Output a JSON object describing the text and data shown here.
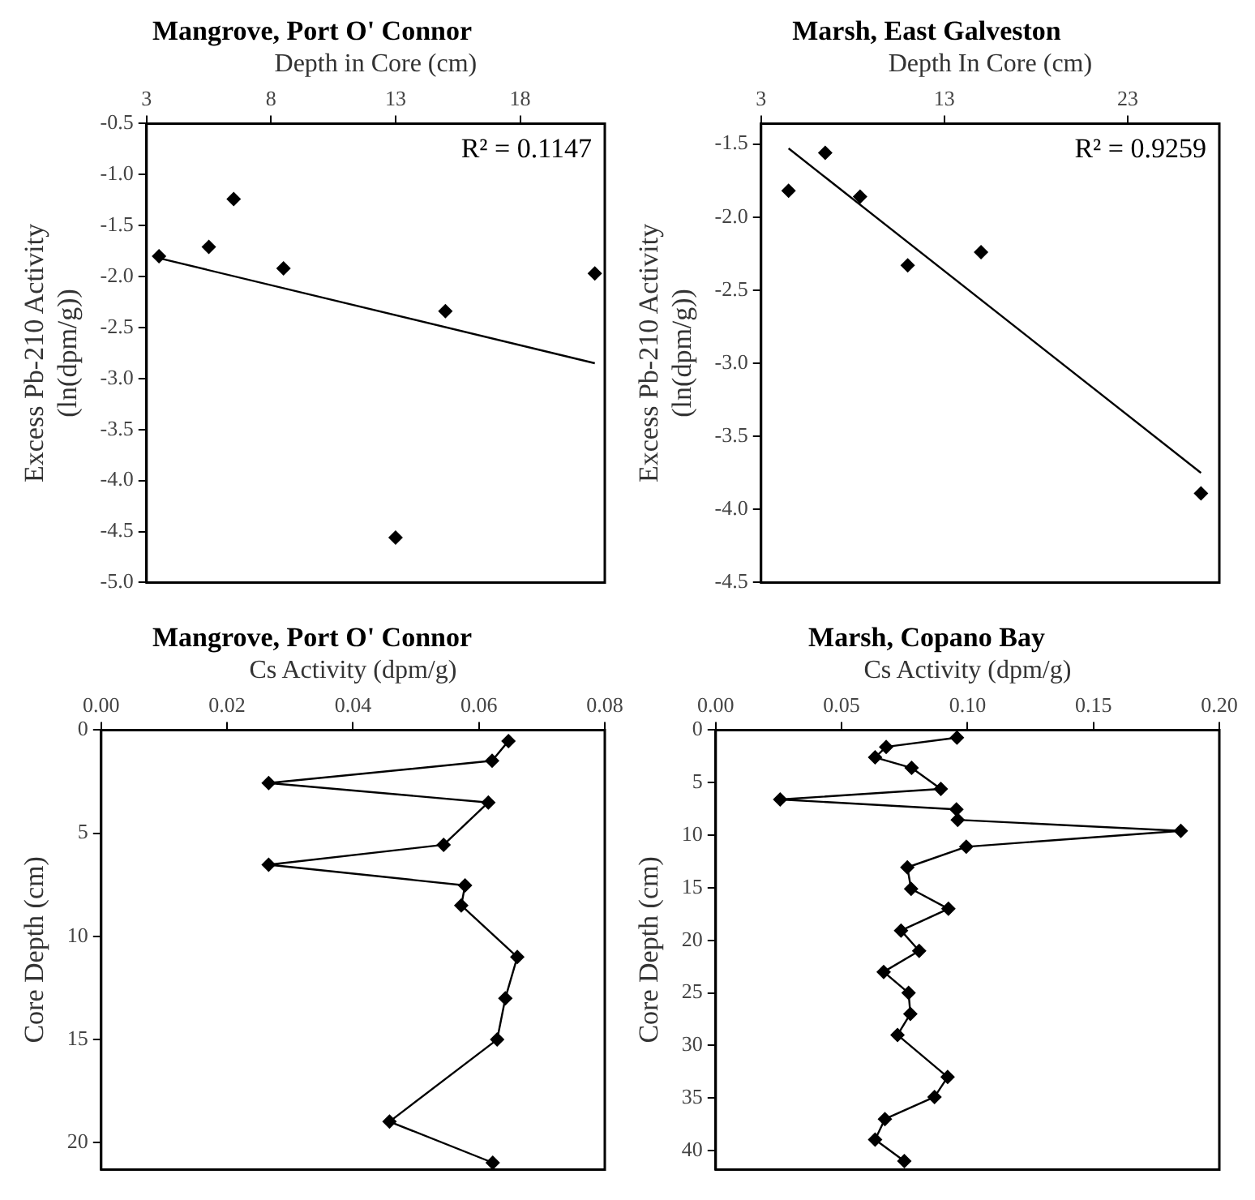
{
  "chart_data": [
    {
      "type": "scatter",
      "title": "Mangrove, Port O' Connor",
      "xlabel": "Depth in Core (cm)",
      "ylabel": "Excess Pb-210 Activity (ln(dpm/g))",
      "xlim": [
        3,
        21.4
      ],
      "xticks": [
        3,
        8,
        13,
        18
      ],
      "ylim": [
        -5,
        -0.5
      ],
      "yticks": [
        -0.5,
        {
          "value": -1,
          "label": "-1.0"
        },
        -1.5,
        {
          "value": -2,
          "label": "-2.0"
        },
        -2.5,
        {
          "value": -3,
          "label": "-3.0"
        },
        -3.5,
        {
          "value": -4,
          "label": "-4.0"
        },
        -4.5,
        {
          "value": -5,
          "label": "-5.0"
        }
      ],
      "grid": false,
      "legend": false,
      "marker": "diamond",
      "annotations": [
        "R² = 0.1147"
      ],
      "series": [
        {
          "type": "scatter",
          "color": "#000000",
          "x": [
            3.5,
            5.5,
            6.5,
            8.5,
            13,
            15,
            21
          ],
          "values": [
            -1.8,
            -1.71,
            -1.24,
            -1.92,
            -4.56,
            -2.34,
            -1.97
          ]
        },
        {
          "type": "line",
          "color": "#000000",
          "marker": "none",
          "x": [
            3.5,
            21
          ],
          "values": [
            -1.82,
            -2.85
          ]
        }
      ]
    },
    {
      "type": "scatter",
      "title": "Marsh, East Galveston",
      "xlabel": "Depth In Core (cm)",
      "ylabel": "Excess Pb-210 Activity (ln(dpm/g))",
      "xlim": [
        3,
        28
      ],
      "xticks": [
        3,
        13,
        23
      ],
      "ylim": [
        -4.5,
        -1.36
      ],
      "yticks": [
        -1.5,
        {
          "value": -2,
          "label": "-2.0"
        },
        -2.5,
        {
          "value": -3,
          "label": "-3.0"
        },
        -3.5,
        {
          "value": -4,
          "label": "-4.0"
        },
        -4.5
      ],
      "grid": false,
      "legend": false,
      "marker": "diamond",
      "annotations": [
        "R² = 0.9259"
      ],
      "series": [
        {
          "type": "scatter",
          "color": "#000000",
          "x": [
            4.5,
            6.5,
            8.4,
            11,
            15,
            27
          ],
          "values": [
            -1.82,
            -1.56,
            -1.86,
            -2.33,
            -2.24,
            -3.89
          ]
        },
        {
          "type": "line",
          "color": "#000000",
          "marker": "none",
          "x": [
            4.5,
            27
          ],
          "values": [
            -1.53,
            -3.75
          ]
        }
      ]
    },
    {
      "type": "line",
      "title": "Mangrove, Port O' Connor",
      "xlabel": "Cs Activity (dpm/g)",
      "ylabel": "Core Depth (cm)",
      "xlim": [
        0,
        0.08
      ],
      "xticks": [
        {
          "value": 0,
          "label": "0.00"
        },
        0.02,
        0.04,
        0.06,
        0.08
      ],
      "ylim": [
        21.3,
        0
      ],
      "yticks": [
        0,
        5,
        10,
        15,
        20
      ],
      "grid": false,
      "legend": false,
      "marker": "diamond",
      "series": [
        {
          "color": "#000000",
          "x": [
            0.0647,
            0.0621,
            0.0266,
            0.0615,
            0.0544,
            0.0266,
            0.0578,
            0.0572,
            0.0661,
            0.0642,
            0.0629,
            0.0458,
            0.0622
          ],
          "values": [
            0.53,
            1.49,
            2.57,
            3.51,
            5.56,
            6.53,
            7.53,
            8.5,
            11,
            13,
            15,
            18.98,
            20.97
          ]
        }
      ]
    },
    {
      "type": "line",
      "title": "Marsh, Copano Bay",
      "xlabel": "Cs Activity (dpm/g)",
      "ylabel": "Core Depth (cm)",
      "xlim": [
        0,
        0.2
      ],
      "xticks": [
        {
          "value": 0,
          "label": "0.00"
        },
        0.05,
        {
          "value": 0.1,
          "label": "0.10"
        },
        0.15,
        {
          "value": 0.2,
          "label": "0.20"
        }
      ],
      "ylim": [
        41.8,
        0
      ],
      "yticks": [
        0,
        5,
        10,
        15,
        20,
        25,
        30,
        35,
        40
      ],
      "grid": false,
      "legend": false,
      "marker": "diamond",
      "series": [
        {
          "color": "#000000",
          "x": [
            0.0958,
            0.0677,
            0.0633,
            0.0778,
            0.0894,
            0.0256,
            0.0956,
            0.0961,
            0.1847,
            0.0995,
            0.0761,
            0.0776,
            0.0924,
            0.0736,
            0.0808,
            0.0667,
            0.0766,
            0.0773,
            0.0722,
            0.0921,
            0.0869,
            0.0672,
            0.0633,
            0.0749
          ],
          "values": [
            0.72,
            1.6,
            2.6,
            3.6,
            5.6,
            6.6,
            7.55,
            8.54,
            9.59,
            11.1,
            13.06,
            15.1,
            17,
            19.07,
            21,
            23,
            25,
            27,
            29,
            33,
            34.9,
            37,
            38.95,
            41
          ]
        }
      ]
    }
  ]
}
